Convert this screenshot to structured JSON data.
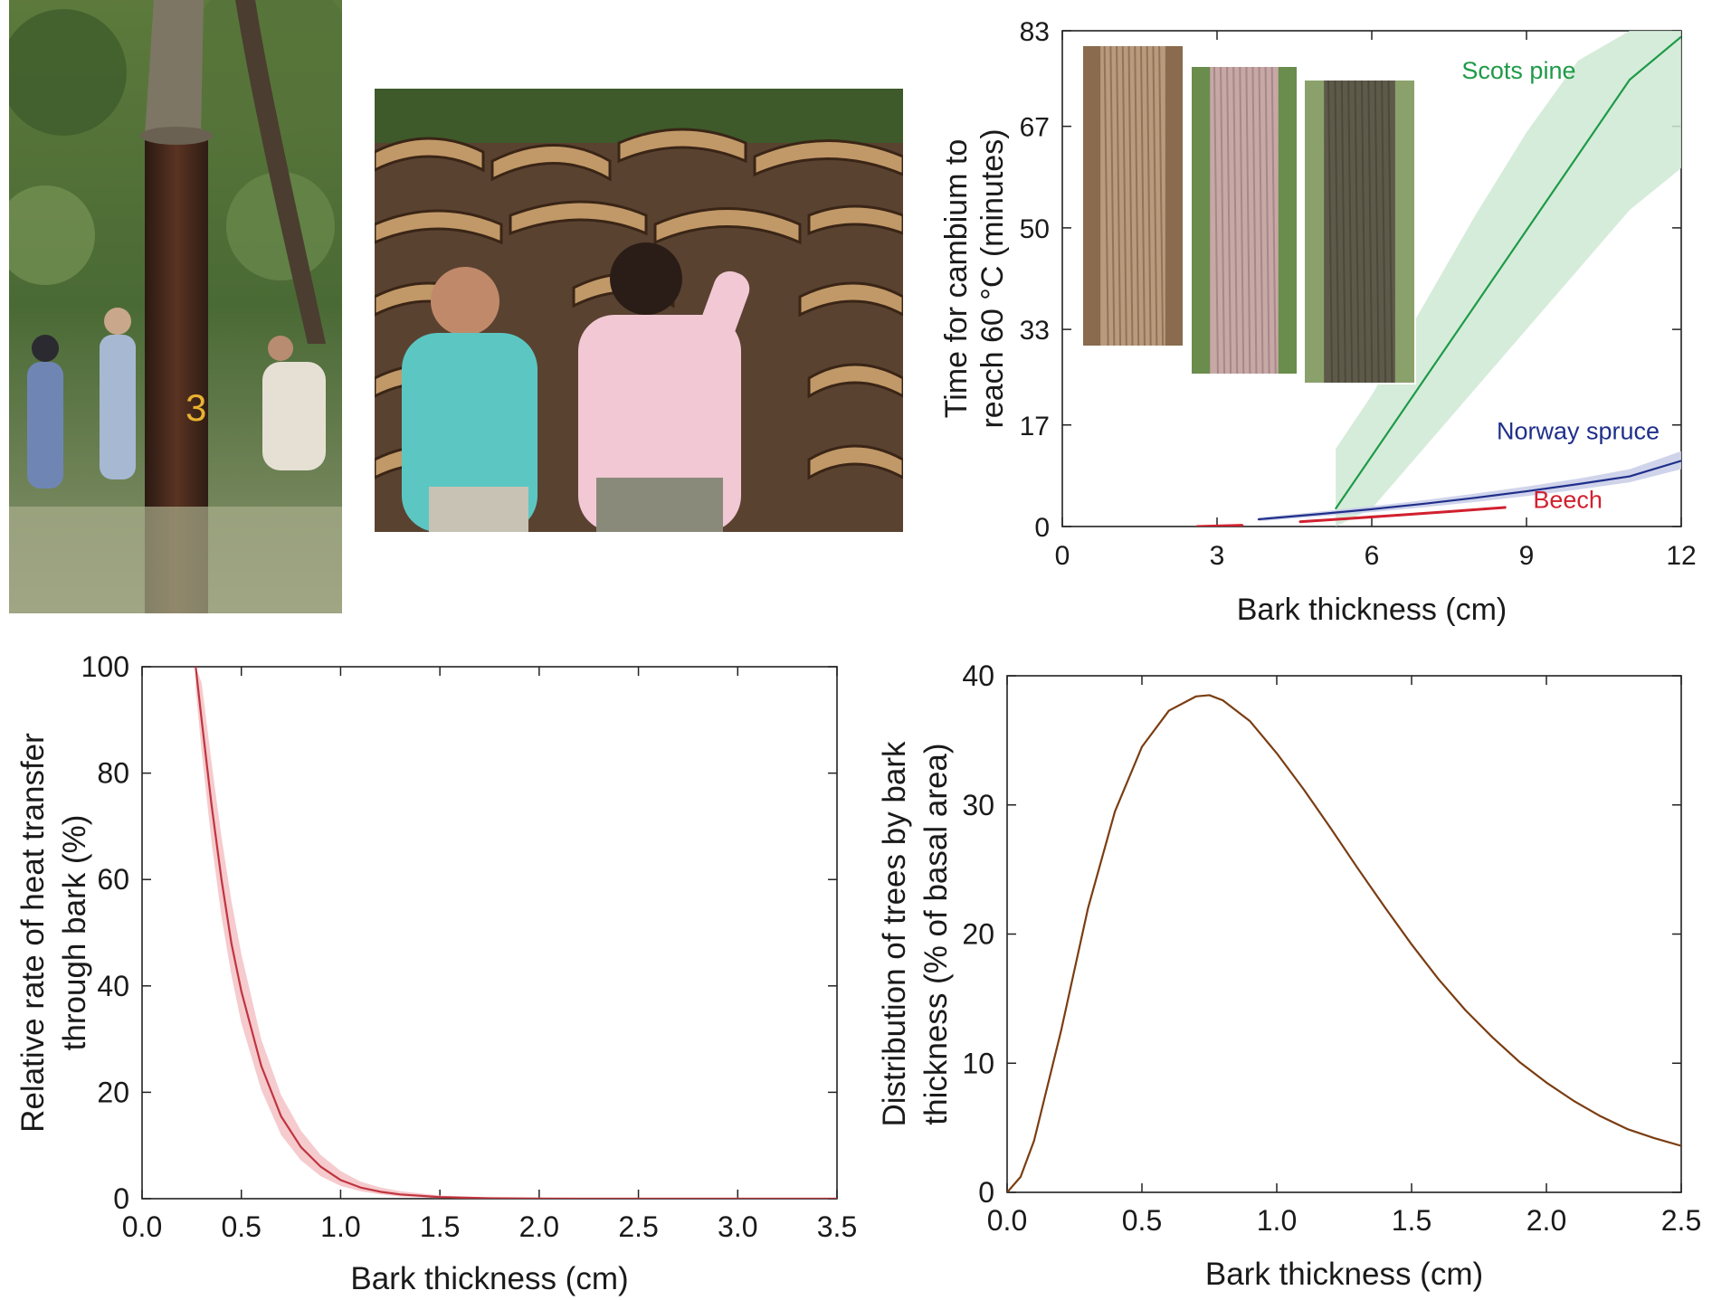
{
  "colors": {
    "scots_pine": "#1e9a48",
    "scots_pine_band": "#cfe9d3",
    "norway_spruce": "#1f2f8a",
    "norway_spruce_band": "#c8cde8",
    "beech": "#d1202f",
    "heat_line": "#c0343f",
    "heat_band": "#f3c2c5",
    "distribution_line": "#7a3d12",
    "axis": "#222222"
  },
  "photos": {
    "cork_tree": {
      "label": "3"
    },
    "cork_stack": {},
    "bark_insets": [
      {
        "name": "scots-pine-bark"
      },
      {
        "name": "norway-spruce-bark"
      },
      {
        "name": "beech-bark"
      }
    ]
  },
  "chart_data": [
    {
      "id": "time-to-60c",
      "type": "line",
      "title": "",
      "xlabel": "Bark thickness (cm)",
      "ylabel_lines": [
        "Time for cambium to",
        "reach 60 °C (minutes)"
      ],
      "xlim": [
        0,
        12
      ],
      "ylim": [
        0,
        83
      ],
      "xticks": [
        0,
        3,
        6,
        9,
        12
      ],
      "yticks": [
        0,
        17,
        33,
        50,
        67,
        83
      ],
      "ytick_labels": [
        "0",
        "17",
        "33",
        "50",
        "67",
        "83"
      ],
      "grid": false,
      "series": [
        {
          "name": "Scots pine",
          "color_key": "scots_pine",
          "band": true,
          "x": [
            5.3,
            6.0,
            7.0,
            8.0,
            9.0,
            10.0,
            11.0,
            12.0
          ],
          "y": [
            3.0,
            11.8,
            24.4,
            37.0,
            49.6,
            62.2,
            74.8,
            82.0
          ],
          "lower": [
            0,
            3,
            13,
            23,
            33,
            43,
            53,
            60
          ],
          "upper": [
            13,
            22,
            37,
            52,
            66,
            78,
            83,
            83
          ],
          "label_pos": [
            8.85,
            75
          ]
        },
        {
          "name": "Norway spruce",
          "color_key": "norway_spruce",
          "band": true,
          "x": [
            3.8,
            5.0,
            6.0,
            7.0,
            8.0,
            9.0,
            10.0,
            11.0,
            12.0
          ],
          "y": [
            1.2,
            2.1,
            2.9,
            3.8,
            4.8,
            5.9,
            7.1,
            8.4,
            11.0
          ],
          "lower": [
            0.9,
            1.7,
            2.4,
            3.2,
            4.1,
            5.1,
            6.2,
            7.4,
            9.6
          ],
          "upper": [
            1.5,
            2.5,
            3.4,
            4.4,
            5.5,
            6.7,
            8.0,
            9.6,
            12.6
          ],
          "label_pos": [
            10.0,
            14.6
          ]
        },
        {
          "name": "Beech",
          "color_key": "beech",
          "band": false,
          "x": [
            4.6,
            5.5,
            6.5,
            7.5,
            8.6
          ],
          "y": [
            0.8,
            1.3,
            1.9,
            2.5,
            3.2
          ],
          "label_pos": [
            9.8,
            3.1
          ]
        },
        {
          "name": "",
          "color_key": "beech",
          "band": false,
          "x": [
            2.6,
            3.0,
            3.5
          ],
          "y": [
            0.0,
            0.1,
            0.2
          ]
        }
      ]
    },
    {
      "id": "heat-transfer-rate",
      "type": "line",
      "title": "",
      "xlabel": "Bark thickness (cm)",
      "ylabel_lines": [
        "Relative rate of heat transfer",
        "through bark (%)"
      ],
      "xlim": [
        0,
        3.5
      ],
      "ylim": [
        0,
        100
      ],
      "xticks": [
        0,
        0.5,
        1.0,
        1.5,
        2.0,
        2.5,
        3.0,
        3.5
      ],
      "xtick_labels": [
        "0.0",
        "0.5",
        "1.0",
        "1.5",
        "2.0",
        "2.5",
        "3.0",
        "3.5"
      ],
      "yticks": [
        0,
        20,
        40,
        60,
        80,
        100
      ],
      "grid": false,
      "series": [
        {
          "name": "",
          "color_key": "heat_line",
          "band": true,
          "x": [
            0.27,
            0.3,
            0.35,
            0.4,
            0.45,
            0.5,
            0.6,
            0.7,
            0.8,
            0.9,
            1.0,
            1.1,
            1.2,
            1.3,
            1.5,
            1.75,
            2.0,
            2.5,
            3.0,
            3.5
          ],
          "y": [
            100,
            90,
            74,
            60,
            48,
            39,
            25,
            15.5,
            9.7,
            6.0,
            3.5,
            2.1,
            1.3,
            0.8,
            0.3,
            0.08,
            0.02,
            0,
            0,
            0
          ],
          "lower": [
            96,
            84,
            67,
            53,
            42,
            33,
            20.5,
            12.0,
            7.2,
            4.2,
            2.4,
            1.4,
            0.8,
            0.4,
            0.1,
            0.02,
            0,
            0,
            0,
            0
          ],
          "upper": [
            100,
            97,
            82,
            68,
            56,
            46,
            30,
            19.5,
            12.8,
            8.2,
            5.2,
            3.2,
            2.1,
            1.4,
            0.6,
            0.2,
            0.06,
            0.02,
            0,
            0
          ]
        }
      ]
    },
    {
      "id": "tree-distribution",
      "type": "line",
      "title": "",
      "xlabel": "Bark thickness (cm)",
      "ylabel_lines": [
        "Distribution of trees by bark",
        "thickness (% of basal area)"
      ],
      "xlim": [
        0,
        2.5
      ],
      "ylim": [
        0,
        40
      ],
      "xticks": [
        0,
        0.5,
        1.0,
        1.5,
        2.0,
        2.5
      ],
      "xtick_labels": [
        "0.0",
        "0.5",
        "1.0",
        "1.5",
        "2.0",
        "2.5"
      ],
      "yticks": [
        0,
        10,
        20,
        30,
        40
      ],
      "grid": false,
      "series": [
        {
          "name": "",
          "color_key": "distribution_line",
          "band": false,
          "x": [
            0,
            0.05,
            0.1,
            0.2,
            0.3,
            0.4,
            0.5,
            0.6,
            0.7,
            0.75,
            0.8,
            0.9,
            1.0,
            1.1,
            1.2,
            1.3,
            1.4,
            1.5,
            1.6,
            1.7,
            1.8,
            1.9,
            2.0,
            2.1,
            2.2,
            2.3,
            2.4,
            2.5
          ],
          "y": [
            0,
            1.2,
            4,
            12.5,
            22,
            29.5,
            34.5,
            37.3,
            38.4,
            38.5,
            38.1,
            36.5,
            34.0,
            31.2,
            28.2,
            25.1,
            22.1,
            19.2,
            16.5,
            14.1,
            12.0,
            10.1,
            8.5,
            7.1,
            5.9,
            4.9,
            4.2,
            3.6
          ]
        }
      ]
    }
  ]
}
